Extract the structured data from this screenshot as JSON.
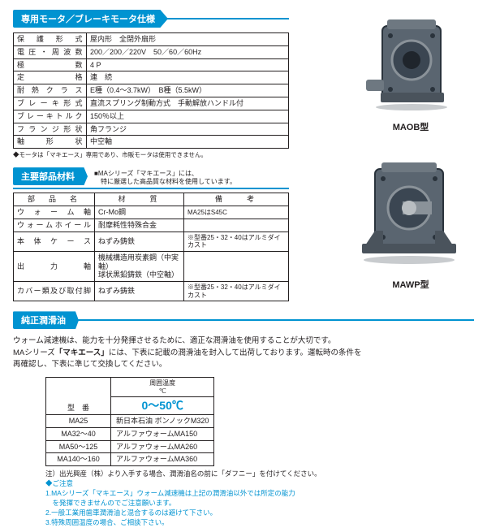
{
  "colors": {
    "accent": "#0093d1",
    "text": "#231f20",
    "bg": "#ffffff",
    "metal_dark": "#3b4652",
    "metal_mid": "#5a6570",
    "metal_light": "#8a9299"
  },
  "section1": {
    "title": "専用モータ／ブレーキモータ仕様",
    "rows": [
      {
        "label": "保　護　形　式",
        "value": "屋内形　全閉外扇形"
      },
      {
        "label": "電圧・周波数",
        "value": "200／200／220V　50／60／60Hz"
      },
      {
        "label": "極　　　　数",
        "value": "4 P"
      },
      {
        "label": "定　　　　格",
        "value": "連　続"
      },
      {
        "label": "耐 熱 ク ラ ス",
        "value": "E種（0.4～3.7kW）　B種（5.5kW）"
      },
      {
        "label": "ブレーキ形式",
        "value": "直流スプリング制動方式　手動解放ハンドル付"
      },
      {
        "label": "ブレーキトルク",
        "value": "150％以上"
      },
      {
        "label": "フランジ形状",
        "value": "角フランジ"
      },
      {
        "label": "軸　形　状",
        "value": "中空軸"
      }
    ],
    "footnote": "◆モータは「マキエース」専用であり、市販モータは使用できません。"
  },
  "section2": {
    "title": "主要部品材料",
    "note_l1": "■MAシリーズ「マキエース」には、",
    "note_l2": "　特に厳選した高品質な材料を使用しています。",
    "headers": {
      "part": "部　品　名",
      "material": "材　　質",
      "remarks": "備　　考"
    },
    "rows": [
      {
        "part": "ウ ォ ー ム 軸",
        "material": "Cr-Mo鋼",
        "remarks": "MA25はS45C"
      },
      {
        "part": "ウォームホイール",
        "material": "耐摩耗性特殊合金",
        "remarks": ""
      },
      {
        "part": "本 体 ケ ー ス",
        "material": "ねずみ鋳鉄",
        "remarks": "※型番25・32・40はアルミダイカスト"
      },
      {
        "part": "出　力　軸",
        "material": "機械構造用炭素鋼（中実軸）\n球状黒鉛鋳鉄（中空軸）",
        "remarks": ""
      },
      {
        "part": "カバー類及び取付脚",
        "material": "ねずみ鋳鉄",
        "remarks": "※型番25・32・40はアルミダイカスト"
      }
    ]
  },
  "section3": {
    "title": "純正潤滑油",
    "body_l1": "ウォーム減速機は、能力を十分発揮させるために、適正な潤滑油を使用することが大切です。",
    "body_l2_a": "MAシリーズ",
    "body_l2_b": "「マキエース」",
    "body_l2_c": "には、下表に記載の潤滑油を封入して出荷しております。運転時の条件を",
    "body_l3": "再確認し、下表に準じて交換してください。",
    "table": {
      "h_model": "型　番",
      "h_temp": "周囲温度\n℃",
      "temp_value": "0～50℃",
      "rows": [
        {
          "model": "MA25",
          "oil": "新日本石油 ボンノックM320"
        },
        {
          "model": "MA32～40",
          "oil": "アルファウォームMA150"
        },
        {
          "model": "MA50～125",
          "oil": "アルファウォームMA260"
        },
        {
          "model": "MA140～160",
          "oil": "アルファウォームMA360"
        }
      ]
    },
    "notes": {
      "n1": "注）出光興産（株）より入手する場合、潤滑油名の前に「ダフニー」を付けてください。",
      "caution": "◆ご注意",
      "c1a": "1.MAシリーズ「マキエース」ウォーム減速機は上記の潤滑油以外では所定の能力",
      "c1b": "　を発揮できませんのでご注意願います。",
      "c2": "2.一般工業用歯車潤滑油と混合するのは避けて下さい。",
      "c3": "3.特殊周囲温度の場合、ご相談下さい。"
    }
  },
  "products": {
    "p1_label": "MAOB型",
    "p2_label": "MAWP型"
  }
}
